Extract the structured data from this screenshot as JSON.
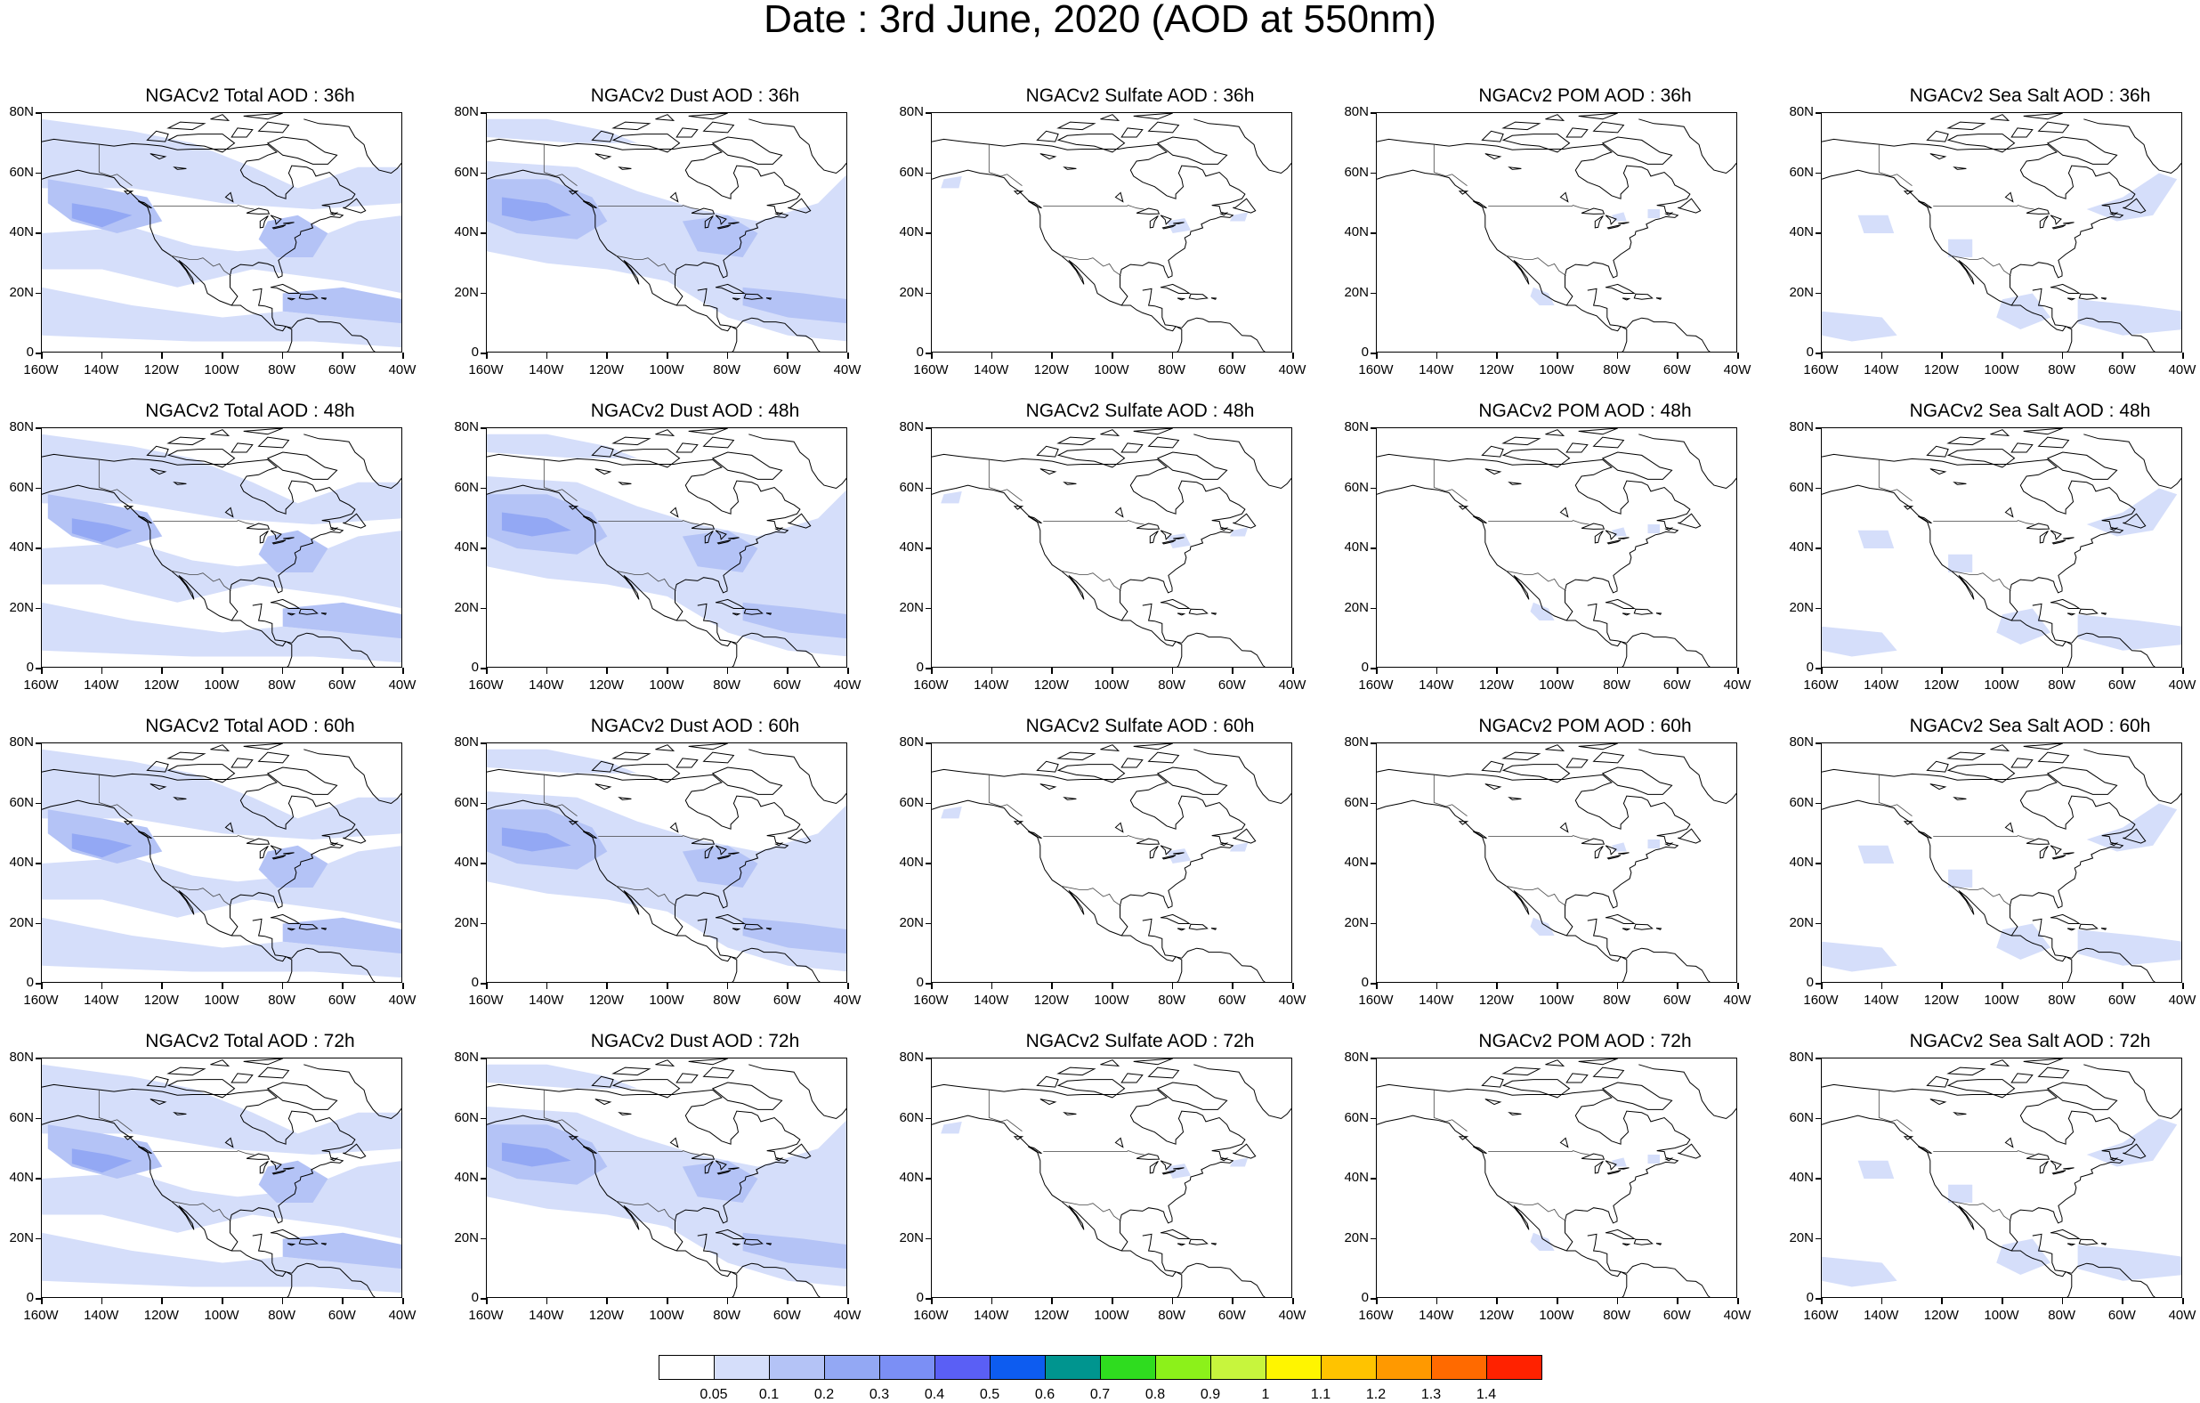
{
  "title": "Date : 3rd June, 2020 (AOD at 550nm)",
  "latitude_labels": [
    "80N",
    "60N",
    "40N",
    "20N",
    "0"
  ],
  "longitude_labels": [
    "160W",
    "140W",
    "120W",
    "100W",
    "80W",
    "60W",
    "40W"
  ],
  "panels": [
    {
      "title": "NGACv2 Total AOD : 36h",
      "species": "total",
      "forecast_hour": 36
    },
    {
      "title": "NGACv2 Dust AOD : 36h",
      "species": "dust",
      "forecast_hour": 36
    },
    {
      "title": "NGACv2 Sulfate AOD : 36h",
      "species": "sulfate",
      "forecast_hour": 36
    },
    {
      "title": "NGACv2 POM AOD : 36h",
      "species": "pom",
      "forecast_hour": 36
    },
    {
      "title": "NGACv2 Sea Salt AOD : 36h",
      "species": "seasalt",
      "forecast_hour": 36
    },
    {
      "title": "NGACv2 Total AOD : 48h",
      "species": "total",
      "forecast_hour": 48
    },
    {
      "title": "NGACv2 Dust AOD : 48h",
      "species": "dust",
      "forecast_hour": 48
    },
    {
      "title": "NGACv2 Sulfate AOD : 48h",
      "species": "sulfate",
      "forecast_hour": 48
    },
    {
      "title": "NGACv2 POM AOD : 48h",
      "species": "pom",
      "forecast_hour": 48
    },
    {
      "title": "NGACv2 Sea Salt AOD : 48h",
      "species": "seasalt",
      "forecast_hour": 48
    },
    {
      "title": "NGACv2 Total AOD : 60h",
      "species": "total",
      "forecast_hour": 60
    },
    {
      "title": "NGACv2 Dust AOD : 60h",
      "species": "dust",
      "forecast_hour": 60
    },
    {
      "title": "NGACv2 Sulfate AOD : 60h",
      "species": "sulfate",
      "forecast_hour": 60
    },
    {
      "title": "NGACv2 POM AOD : 60h",
      "species": "pom",
      "forecast_hour": 60
    },
    {
      "title": "NGACv2 Sea Salt AOD : 60h",
      "species": "seasalt",
      "forecast_hour": 60
    },
    {
      "title": "NGACv2 Total AOD : 72h",
      "species": "total",
      "forecast_hour": 72
    },
    {
      "title": "NGACv2 Dust AOD : 72h",
      "species": "dust",
      "forecast_hour": 72
    },
    {
      "title": "NGACv2 Sulfate AOD : 72h",
      "species": "sulfate",
      "forecast_hour": 72
    },
    {
      "title": "NGACv2 POM AOD : 72h",
      "species": "pom",
      "forecast_hour": 72
    },
    {
      "title": "NGACv2 Sea Salt  AOD : 72h",
      "species": "seasalt",
      "forecast_hour": 72
    }
  ],
  "colorbar": {
    "labels": [
      "0.05",
      "0.1",
      "0.2",
      "0.3",
      "0.4",
      "0.5",
      "0.6",
      "0.7",
      "0.8",
      "0.9",
      "1",
      "1.1",
      "1.2",
      "1.3",
      "1.4"
    ],
    "colors": [
      "#ffffff",
      "#d5defa",
      "#b4c3f6",
      "#93a8f4",
      "#7b8ff5",
      "#5a5ff5",
      "#0d5cf0",
      "#00958f",
      "#2fdc1f",
      "#8cf11a",
      "#c7f53d",
      "#fff500",
      "#ffc300",
      "#ff9900",
      "#ff6a00",
      "#ff2200"
    ]
  },
  "map_colors": {
    "coast": "#000000",
    "light": "#d5defa",
    "mid": "#b4c3f6",
    "dark": "#93a8f4"
  }
}
